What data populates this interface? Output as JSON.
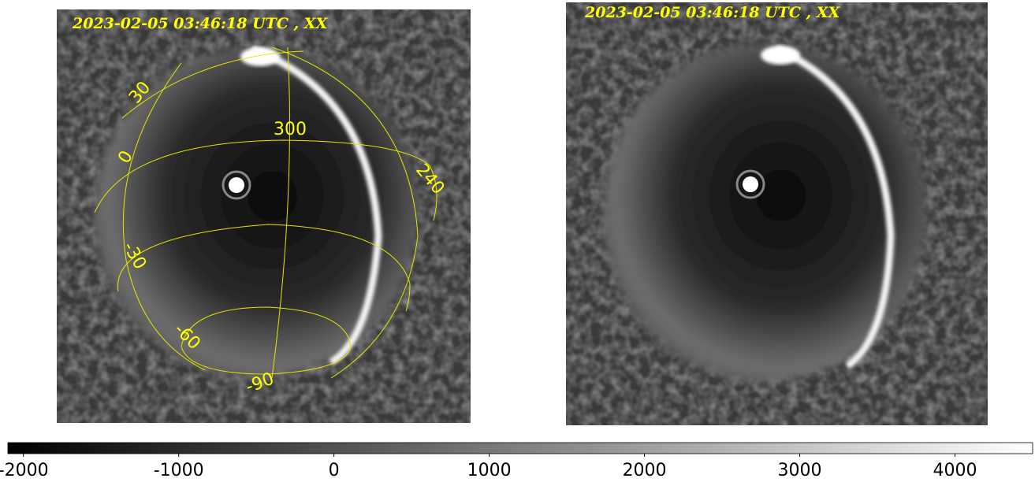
{
  "panels": [
    {
      "title": "2023-02-05 03:46:18 UTC , XX",
      "grid_labels": [
        "30",
        "0",
        "300",
        "240",
        "-30",
        "-60",
        "-90"
      ]
    },
    {
      "title": "2023-02-05 03:46:18 UTC , XX"
    }
  ],
  "colorbar": {
    "lim": [
      -2100,
      4500
    ],
    "ticks": [
      -2000,
      -1000,
      0,
      1000,
      2000,
      3000,
      4000
    ]
  }
}
